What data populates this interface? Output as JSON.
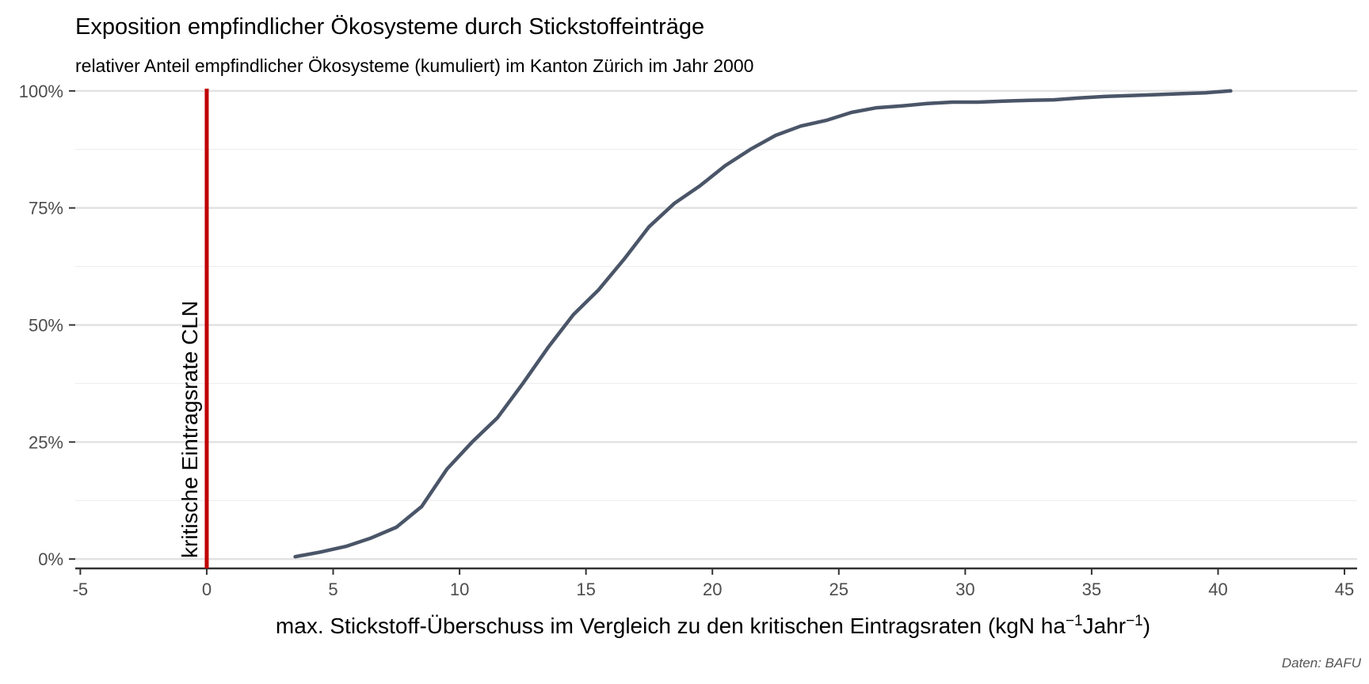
{
  "chart_data": {
    "type": "line",
    "title": "Exposition empfindlicher Ökosysteme durch Stickstoffeinträge",
    "subtitle": "relativer Anteil empfindlicher Ökosysteme (kumuliert) im Kanton Zürich im Jahr 2000",
    "xlabel_main": "max. Stickstoff-Überschuss im Vergleich zu den kritischen Eintragsraten (kgN ha",
    "xlabel_exp1": "−1",
    "xlabel_mid": "Jahr",
    "xlabel_exp2": "−1",
    "xlabel_close": ")",
    "ylabel": "",
    "caption": "Daten: BAFU",
    "xlim": [
      -5.2,
      45.5
    ],
    "ylim": [
      -0.02,
      1.02
    ],
    "x_ticks": [
      {
        "value": -5,
        "label": "-5"
      },
      {
        "value": 0,
        "label": "0"
      },
      {
        "value": 5,
        "label": "5"
      },
      {
        "value": 10,
        "label": "10"
      },
      {
        "value": 15,
        "label": "15"
      },
      {
        "value": 20,
        "label": "20"
      },
      {
        "value": 25,
        "label": "25"
      },
      {
        "value": 30,
        "label": "30"
      },
      {
        "value": 35,
        "label": "35"
      },
      {
        "value": 40,
        "label": "40"
      },
      {
        "value": 45,
        "label": "45"
      }
    ],
    "y_ticks": [
      {
        "value": 0,
        "label": "0%"
      },
      {
        "value": 0.25,
        "label": "25%"
      },
      {
        "value": 0.5,
        "label": "50%"
      },
      {
        "value": 0.75,
        "label": "75%"
      },
      {
        "value": 1,
        "label": "100%"
      }
    ],
    "y_minor": [
      0.125,
      0.375,
      0.625,
      0.875
    ],
    "grid": true,
    "reference_line": {
      "x": 0,
      "label": "kritische Eintragsrate CLN",
      "color": "#c00000"
    },
    "series": [
      {
        "color": "#4a5568",
        "x": [
          3.5,
          4.5,
          5.5,
          6.5,
          7.5,
          8.5,
          9.5,
          10.5,
          11.5,
          12.5,
          13.5,
          14.5,
          15.5,
          16.5,
          17.5,
          18.5,
          19.5,
          20.5,
          21.5,
          22.5,
          23.5,
          24.5,
          25.5,
          26.5,
          27.5,
          28.5,
          29.5,
          30.5,
          31.5,
          32.5,
          33.5,
          34.5,
          35.5,
          36.5,
          37.5,
          38.5,
          39.5,
          40.5
        ],
        "y": [
          0.005,
          0.015,
          0.027,
          0.045,
          0.068,
          0.112,
          0.192,
          0.25,
          0.302,
          0.375,
          0.452,
          0.522,
          0.575,
          0.64,
          0.71,
          0.76,
          0.797,
          0.84,
          0.875,
          0.905,
          0.925,
          0.937,
          0.954,
          0.964,
          0.968,
          0.973,
          0.976,
          0.976,
          0.978,
          0.98,
          0.981,
          0.985,
          0.988,
          0.99,
          0.992,
          0.994,
          0.996,
          1.0
        ]
      }
    ]
  }
}
